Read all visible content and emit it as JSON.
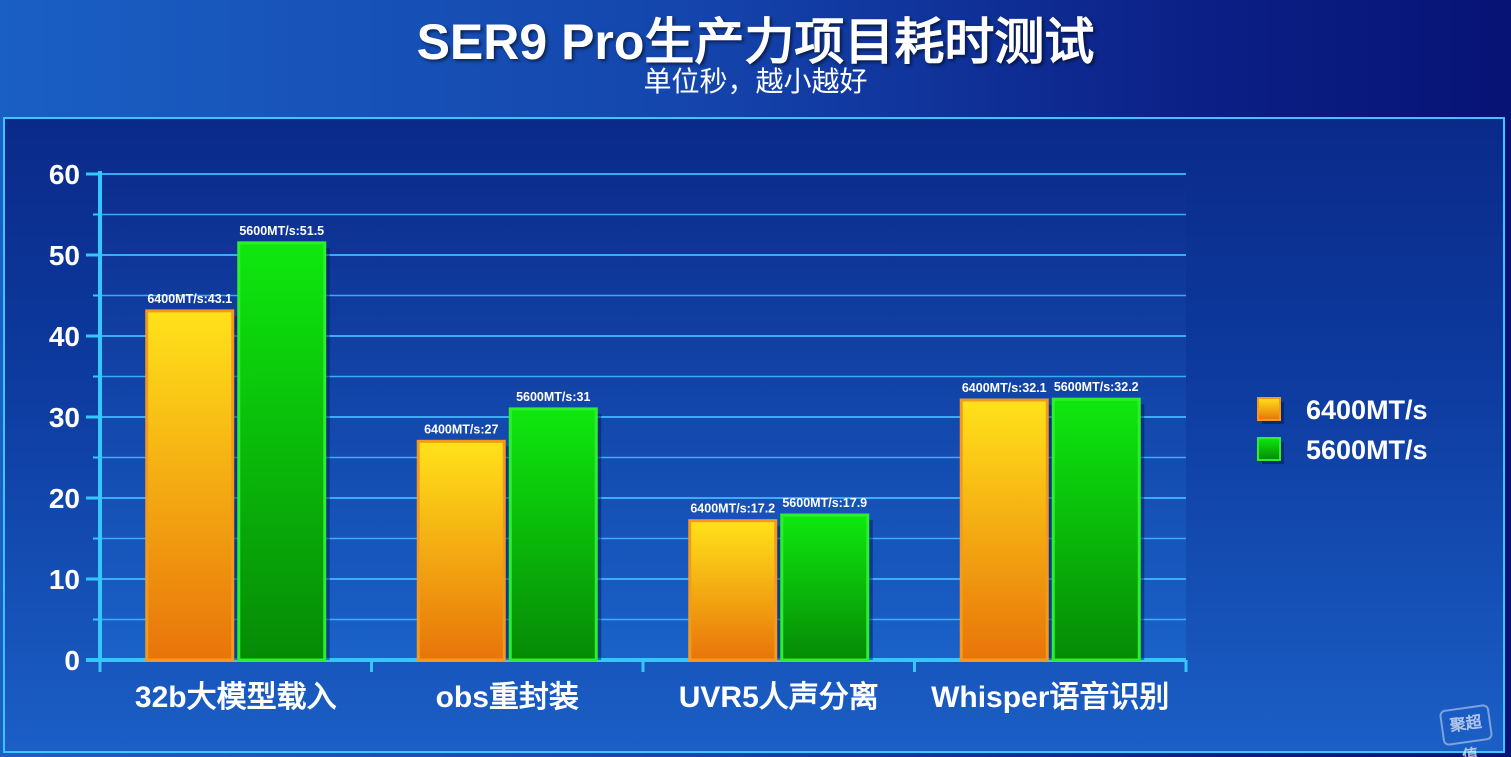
{
  "title": "SER9 Pro生产力项目耗时测试",
  "subtitle": "单位秒，越小越好",
  "watermark": "聚超值",
  "chart_data": {
    "type": "bar",
    "title": "SER9 Pro生产力项目耗时测试",
    "subtitle": "单位秒，越小越好",
    "categories": [
      "32b大模型载入",
      "obs重封装",
      "UVR5人声分离",
      "Whisper语音识别"
    ],
    "series": [
      {
        "name": "6400MT/s",
        "values": [
          43.1,
          27,
          17.2,
          32.1
        ],
        "labels": [
          "6400MT/s:43.1",
          "6400MT/s:27",
          "6400MT/s:17.2",
          "6400MT/s:32.1"
        ],
        "color_top": "#ffe21a",
        "color_bottom": "#e8740a",
        "border": "#f39a1c"
      },
      {
        "name": "5600MT/s",
        "values": [
          51.5,
          31,
          17.9,
          32.2
        ],
        "labels": [
          "5600MT/s:51.5",
          "5600MT/s:31",
          "5600MT/s:17.9",
          "5600MT/s:32.2"
        ],
        "color_top": "#0ee80e",
        "color_bottom": "#068a06",
        "border": "#2cf02c"
      }
    ],
    "yticks": [
      "0",
      "10",
      "20",
      "30",
      "40",
      "50",
      "60"
    ],
    "ylim": [
      0,
      60
    ],
    "grid": true,
    "legend_position": "right",
    "xlabel": "",
    "ylabel": ""
  }
}
